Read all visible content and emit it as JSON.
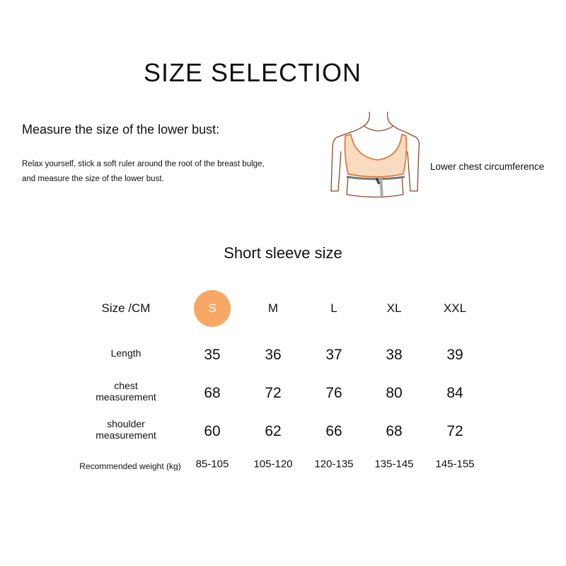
{
  "title": "SIZE SELECTION",
  "measure": {
    "heading": "Measure the size of the lower bust:",
    "line1": "Relax yourself, stick a soft ruler around the root of the breast bulge,",
    "line2": "and measure the size of the lower bust."
  },
  "figure": {
    "label": "Lower chest circumference"
  },
  "subtitle": "Short sleeve size",
  "accent": "#f7a866",
  "table": {
    "header_label": "Size /CM",
    "sizes": [
      "S",
      "M",
      "L",
      "XL",
      "XXL"
    ],
    "selected": "S",
    "rows": [
      {
        "label1": "Length",
        "label2": "",
        "values": [
          "35",
          "36",
          "37",
          "38",
          "39"
        ]
      },
      {
        "label1": "chest",
        "label2": "measurement",
        "values": [
          "68",
          "72",
          "76",
          "80",
          "84"
        ]
      },
      {
        "label1": "shoulder",
        "label2": "measurement",
        "values": [
          "60",
          "62",
          "66",
          "68",
          "72"
        ]
      }
    ],
    "weight": {
      "label": "Recommended weight (kg)",
      "values": [
        "85-105",
        "105-120",
        "120-135",
        "135-145",
        "145-155"
      ]
    }
  }
}
